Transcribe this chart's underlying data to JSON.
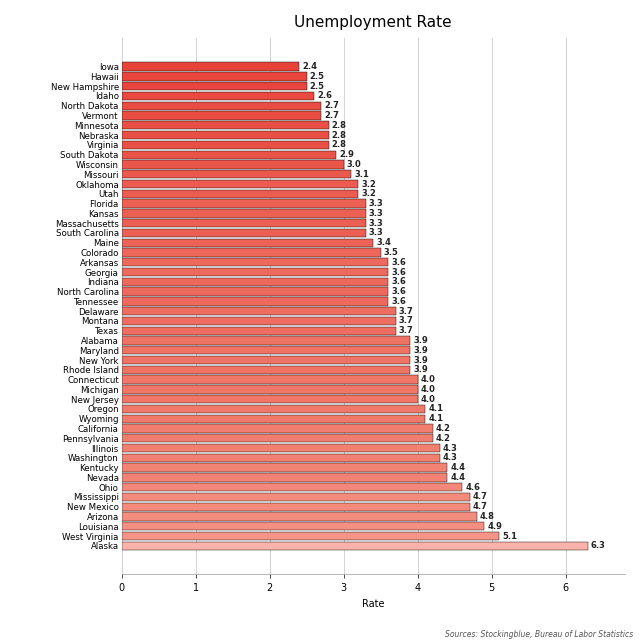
{
  "title": "Unemployment Rate",
  "xlabel": "Rate",
  "source": "Sources: Stockingblue, Bureau of Labor Statistics",
  "states": [
    "Iowa",
    "Hawaii",
    "New Hampshire",
    "Idaho",
    "North Dakota",
    "Vermont",
    "Minnesota",
    "Nebraska",
    "Virginia",
    "South Dakota",
    "Wisconsin",
    "Missouri",
    "Oklahoma",
    "Utah",
    "Florida",
    "Kansas",
    "Massachusetts",
    "South Carolina",
    "Maine",
    "Colorado",
    "Arkansas",
    "Georgia",
    "Indiana",
    "North Carolina",
    "Tennessee",
    "Delaware",
    "Montana",
    "Texas",
    "Alabama",
    "Maryland",
    "New York",
    "Rhode Island",
    "Connecticut",
    "Michigan",
    "New Jersey",
    "Oregon",
    "Wyoming",
    "California",
    "Pennsylvania",
    "Illinois",
    "Washington",
    "Kentucky",
    "Nevada",
    "Ohio",
    "Mississippi",
    "New Mexico",
    "Arizona",
    "Louisiana",
    "West Virginia",
    "Alaska"
  ],
  "rates": [
    2.4,
    2.5,
    2.5,
    2.6,
    2.7,
    2.7,
    2.8,
    2.8,
    2.8,
    2.9,
    3.0,
    3.1,
    3.2,
    3.2,
    3.3,
    3.3,
    3.3,
    3.3,
    3.4,
    3.5,
    3.6,
    3.6,
    3.6,
    3.6,
    3.6,
    3.7,
    3.7,
    3.7,
    3.9,
    3.9,
    3.9,
    3.9,
    4.0,
    4.0,
    4.0,
    4.1,
    4.1,
    4.2,
    4.2,
    4.3,
    4.3,
    4.4,
    4.4,
    4.6,
    4.7,
    4.7,
    4.8,
    4.9,
    5.1,
    6.3
  ],
  "color_dark": [
    232,
    67,
    58
  ],
  "color_mid": [
    242,
    130,
    115
  ],
  "color_light": [
    250,
    178,
    170
  ],
  "xlim": [
    0,
    6.8
  ],
  "xticks": [
    0,
    1,
    2,
    3,
    4,
    5,
    6
  ],
  "background_color": "#FFFFFF",
  "grid_color": "#CCCCCC",
  "title_fontsize": 11,
  "label_fontsize": 6.2,
  "tick_fontsize": 7,
  "value_fontsize": 6,
  "bar_height": 0.85
}
